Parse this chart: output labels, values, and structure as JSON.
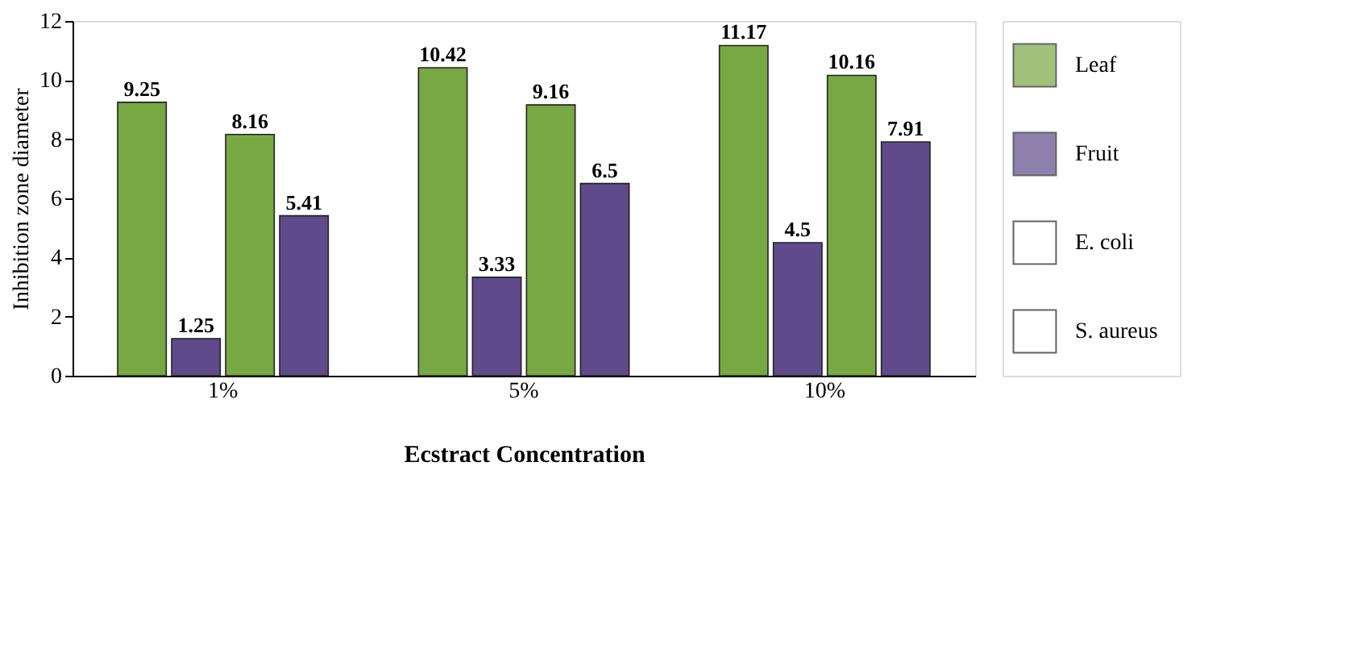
{
  "chart_data": {
    "type": "bar",
    "xlabel": "Ecstract Concentration",
    "ylabel": "Inhibition zone diameter",
    "categories": [
      "1%",
      "5%",
      "10%"
    ],
    "series": [
      {
        "name": "Leaf",
        "color": "#77a843",
        "values": [
          9.25,
          10.42,
          11.17
        ]
      },
      {
        "name": "Fruit",
        "color": "#5f4b8b",
        "values": [
          1.25,
          3.33,
          4.5
        ]
      },
      {
        "color": "#77a843",
        "values": [
          8.16,
          9.16,
          10.16
        ]
      },
      {
        "color": "#5f4b8b",
        "values": [
          5.41,
          6.5,
          7.91
        ]
      }
    ],
    "annotations": [
      "E. coli",
      "S. aureus"
    ],
    "ylim": [
      0,
      12
    ],
    "yticks": [
      0,
      2,
      4,
      6,
      8,
      10,
      12
    ],
    "data_labels": true,
    "legend": "right",
    "grid": false
  }
}
